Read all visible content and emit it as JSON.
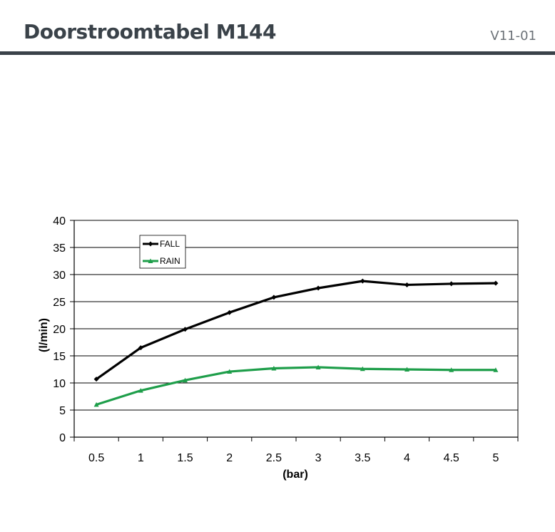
{
  "header": {
    "title": "Doorstroomtabel M144",
    "version": "V11-01"
  },
  "chart_data": {
    "type": "line",
    "x": [
      0.5,
      1,
      1.5,
      2,
      2.5,
      3,
      3.5,
      4,
      4.5,
      5
    ],
    "categories": [
      "0.5",
      "1",
      "1.5",
      "2",
      "2.5",
      "3",
      "3.5",
      "4",
      "4.5",
      "5"
    ],
    "series": [
      {
        "name": "FALL",
        "color": "#000000",
        "values": [
          10.7,
          16.5,
          19.9,
          23.0,
          25.8,
          27.5,
          28.8,
          28.1,
          28.3,
          28.4
        ]
      },
      {
        "name": "RAIN",
        "color": "#1e9e4a",
        "values": [
          6.0,
          8.6,
          10.5,
          12.1,
          12.7,
          12.9,
          12.6,
          12.5,
          12.4,
          12.4
        ]
      }
    ],
    "xlabel": "(bar)",
    "ylabel": "(l/min)",
    "ylim": [
      0,
      40
    ],
    "yticks": [
      "0",
      "5",
      "10",
      "15",
      "20",
      "25",
      "30",
      "35",
      "40"
    ],
    "grid": true,
    "legend_position": "top-left"
  }
}
